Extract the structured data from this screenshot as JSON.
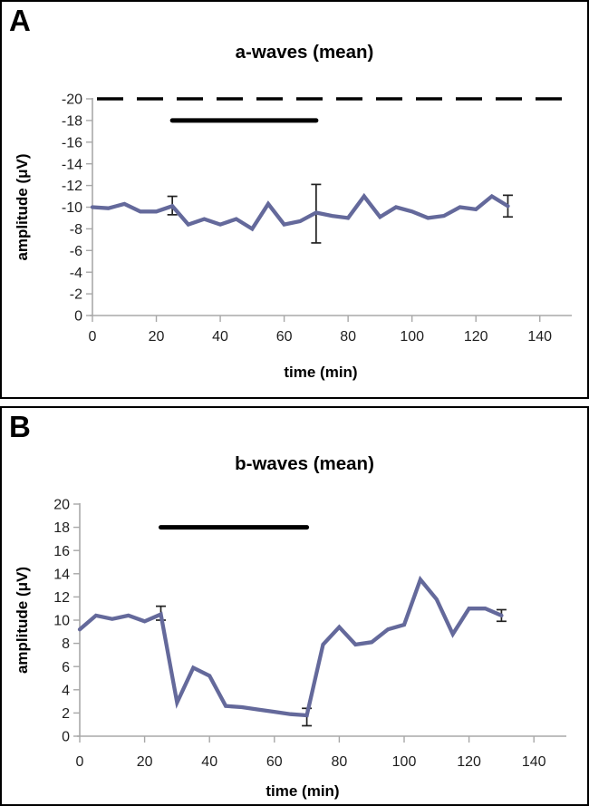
{
  "figure": {
    "panels": [
      {
        "panel_label": "A",
        "title": "a-waves (mean)",
        "xlabel": "time (min)",
        "ylabel": "amplitude (μV)"
      },
      {
        "panel_label": "B",
        "title": "b-waves (mean)",
        "xlabel": "time (min)",
        "ylabel": "amplitude (μV)"
      }
    ]
  },
  "chart_data": [
    {
      "type": "line",
      "panel": "A",
      "title": "a-waves (mean)",
      "xlabel": "time (min)",
      "ylabel": "amplitude (μV)",
      "xlim": [
        0,
        150
      ],
      "xticks": [
        0,
        20,
        40,
        60,
        80,
        100,
        120,
        140
      ],
      "ylim": [
        0,
        -20
      ],
      "yticks": [
        -20,
        -18,
        -16,
        -14,
        -12,
        -10,
        -8,
        -6,
        -4,
        -2,
        0
      ],
      "line_color": "#64699b",
      "x": [
        0,
        5,
        10,
        15,
        20,
        25,
        30,
        35,
        40,
        45,
        50,
        55,
        60,
        65,
        70,
        75,
        80,
        85,
        90,
        95,
        100,
        105,
        110,
        115,
        120,
        125,
        130
      ],
      "y": [
        -10.0,
        -9.9,
        -10.3,
        -9.6,
        -9.6,
        -10.1,
        -8.4,
        -8.9,
        -8.4,
        -8.9,
        -8.0,
        -10.3,
        -8.4,
        -8.7,
        -9.5,
        -9.2,
        -9.0,
        -11.0,
        -9.1,
        -10.0,
        -9.6,
        -9.0,
        -9.2,
        -10.0,
        -9.8,
        -11.0,
        -10.1
      ],
      "error_bars": [
        {
          "x": 25,
          "y": -10.1,
          "low": -9.3,
          "high": -11.0
        },
        {
          "x": 70,
          "y": -9.5,
          "low": -6.7,
          "high": -12.1
        },
        {
          "x": 130,
          "y": -10.1,
          "low": -9.1,
          "high": -11.1
        }
      ],
      "dashed_reference_line_y": -20,
      "stimulus_bar": {
        "y": -18,
        "x_start": 25,
        "x_end": 70
      }
    },
    {
      "type": "line",
      "panel": "B",
      "title": "b-waves (mean)",
      "xlabel": "time (min)",
      "ylabel": "amplitude (μV)",
      "xlim": [
        0,
        150
      ],
      "xticks": [
        0,
        20,
        40,
        60,
        80,
        100,
        120,
        140
      ],
      "ylim": [
        0,
        20
      ],
      "yticks": [
        20,
        18,
        16,
        14,
        12,
        10,
        8,
        6,
        4,
        2,
        0
      ],
      "line_color": "#64699b",
      "x": [
        0,
        5,
        10,
        15,
        20,
        25,
        30,
        35,
        40,
        45,
        50,
        55,
        60,
        65,
        70,
        75,
        80,
        85,
        90,
        95,
        100,
        105,
        110,
        115,
        120,
        125,
        130
      ],
      "y": [
        9.2,
        10.4,
        10.1,
        10.4,
        9.9,
        10.5,
        2.9,
        5.9,
        5.2,
        2.6,
        2.5,
        2.3,
        2.1,
        1.9,
        1.8,
        7.9,
        9.4,
        7.9,
        8.1,
        9.2,
        9.6,
        13.5,
        11.8,
        8.8,
        11.0,
        11.0,
        10.4
      ],
      "error_bars": [
        {
          "x": 25,
          "y": 10.5,
          "low": 10.0,
          "high": 11.2
        },
        {
          "x": 70,
          "y": 1.8,
          "low": 0.9,
          "high": 2.4
        },
        {
          "x": 130,
          "y": 10.4,
          "low": 9.9,
          "high": 10.9
        }
      ],
      "dashed_reference_line_y": null,
      "stimulus_bar": {
        "y": 18,
        "x_start": 25,
        "x_end": 70
      }
    }
  ]
}
